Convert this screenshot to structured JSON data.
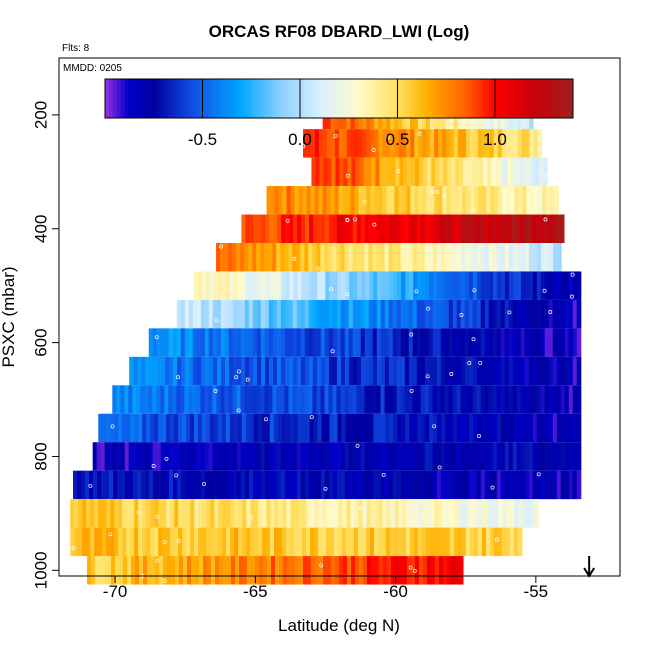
{
  "chart_data": {
    "type": "heatmap",
    "title": "ORCAS RF08 DBARD_LWI (Log)",
    "flights_note": "Flts: 8",
    "date_note": "MMDD: 0205",
    "xlabel": "Latitude (deg N)",
    "ylabel": "PSXC (mbar)",
    "xlim": [
      -72,
      -52
    ],
    "ylim": [
      1010,
      100
    ],
    "x_ticks": [
      -70,
      -65,
      -60,
      -55
    ],
    "x_tick_labels": [
      "-70",
      "-65",
      "-60",
      "-55"
    ],
    "y_ticks": [
      200,
      400,
      600,
      800,
      1000
    ],
    "y_tick_labels": [
      "200",
      "400",
      "600",
      "800",
      "1000"
    ],
    "colorbar": {
      "range": [
        -1.0,
        1.4
      ],
      "ticks": [
        -0.5,
        0.0,
        0.5,
        1.0
      ],
      "tick_labels": [
        "-0.5",
        "0.0",
        "0.5",
        "1.0"
      ],
      "stops": [
        [
          -1.0,
          "#9a30e8"
        ],
        [
          -0.88,
          "#0000c8"
        ],
        [
          -0.75,
          "#0000a0"
        ],
        [
          -0.55,
          "#1050e8"
        ],
        [
          -0.3,
          "#00a8ff"
        ],
        [
          -0.1,
          "#8ccfff"
        ],
        [
          0.1,
          "#d8efff"
        ],
        [
          0.3,
          "#fffacc"
        ],
        [
          0.5,
          "#ffe060"
        ],
        [
          0.65,
          "#ffb000"
        ],
        [
          0.85,
          "#ff6000"
        ],
        [
          1.0,
          "#ff0000"
        ],
        [
          1.2,
          "#c80008"
        ],
        [
          1.4,
          "#a02020"
        ]
      ]
    },
    "bands": [
      {
        "p": 200,
        "x0": -62.6,
        "x1": -55.1,
        "v0": 0.95,
        "v1": 0.05
      },
      {
        "p": 250,
        "x0": -63.3,
        "x1": -54.8,
        "v0": 0.95,
        "v1": 0.45
      },
      {
        "p": 300,
        "x0": -63.0,
        "x1": -54.6,
        "v0": 1.0,
        "v1": 0.05
      },
      {
        "p": 350,
        "x0": -64.6,
        "x1": -54.2,
        "v0": 0.8,
        "v1": 0.3
      },
      {
        "p": 400,
        "x0": -65.5,
        "x1": -54.0,
        "v0": 0.85,
        "v1": 1.35
      },
      {
        "p": 450,
        "x0": -66.4,
        "x1": -54.1,
        "v0": 0.8,
        "v1": 0.05
      },
      {
        "p": 500,
        "x0": -67.2,
        "x1": -53.4,
        "v0": 0.4,
        "v1": -0.85
      },
      {
        "p": 550,
        "x0": -67.8,
        "x1": -53.4,
        "v0": 0.1,
        "v1": -0.9
      },
      {
        "p": 600,
        "x0": -68.8,
        "x1": -53.4,
        "v0": -0.35,
        "v1": -0.9
      },
      {
        "p": 650,
        "x0": -69.5,
        "x1": -53.4,
        "v0": -0.4,
        "v1": -0.85
      },
      {
        "p": 700,
        "x0": -70.1,
        "x1": -53.4,
        "v0": -0.4,
        "v1": -0.85
      },
      {
        "p": 750,
        "x0": -70.6,
        "x1": -53.4,
        "v0": -0.5,
        "v1": -0.85
      },
      {
        "p": 800,
        "x0": -70.8,
        "x1": -53.4,
        "v0": -0.85,
        "v1": -0.75
      },
      {
        "p": 850,
        "x0": -71.5,
        "x1": -53.4,
        "v0": -0.7,
        "v1": -0.85
      },
      {
        "p": 900,
        "x0": -71.6,
        "x1": -54.9,
        "v0": 0.6,
        "v1": 0.2
      },
      {
        "p": 950,
        "x0": -71.6,
        "x1": -55.5,
        "v0": 0.6,
        "v1": 0.55
      },
      {
        "p": 1000,
        "x0": -71.0,
        "x1": -57.6,
        "v0": 0.55,
        "v1": 1.05
      }
    ],
    "arrow_marker": {
      "x": -53.1,
      "direction": "down"
    }
  }
}
